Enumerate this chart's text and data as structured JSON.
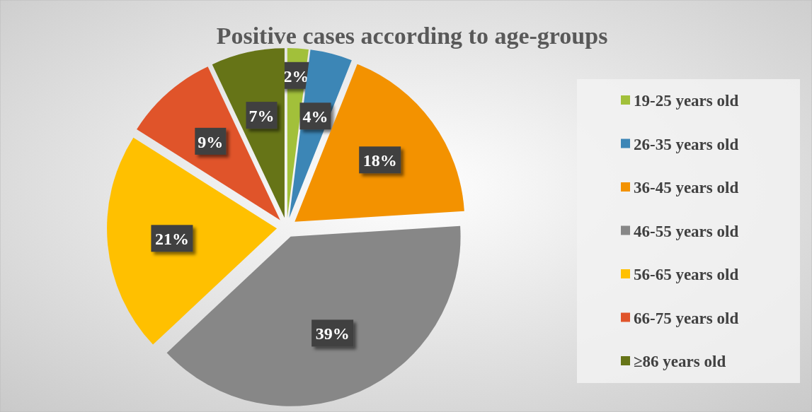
{
  "chart_data": {
    "type": "pie",
    "title": "Positive cases according to age-groups",
    "categories": [
      "19-25 years old",
      "26-35 years old",
      "36-45 years old",
      "46-55 years old",
      "56-65 years old",
      "66-75 years old",
      "≥86 years old"
    ],
    "values": [
      2,
      4,
      18,
      39,
      21,
      9,
      7
    ],
    "colors": [
      "#a2c03a",
      "#3c86b6",
      "#f39200",
      "#878787",
      "#ffc000",
      "#e0542a",
      "#667417"
    ],
    "value_labels": [
      "2%",
      "4%",
      "18%",
      "39%",
      "21%",
      "9%",
      "7%"
    ],
    "legend": "right"
  }
}
